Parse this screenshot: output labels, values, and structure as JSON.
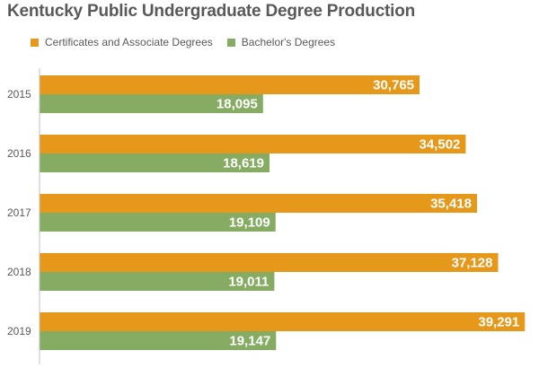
{
  "chart_data": {
    "type": "bar",
    "orientation": "horizontal",
    "title": "Kentucky Public Undergraduate Degree Production",
    "categories": [
      "2015",
      "2016",
      "2017",
      "2018",
      "2019"
    ],
    "series": [
      {
        "name": "Certificates and Associate Degrees",
        "color": "#E6981A",
        "values": [
          30765,
          34502,
          35418,
          37128,
          39291
        ],
        "labels": [
          "30,765",
          "34,502",
          "35,418",
          "37,128",
          "39,291"
        ]
      },
      {
        "name": "Bachelor's Degrees",
        "color": "#86AC64",
        "values": [
          18095,
          18619,
          19109,
          19011,
          19147
        ],
        "labels": [
          "18,095",
          "18,619",
          "19,109",
          "19,011",
          "19,147"
        ]
      }
    ],
    "xlim": [
      0,
      40000
    ],
    "grid": false,
    "legend": "top-left"
  }
}
